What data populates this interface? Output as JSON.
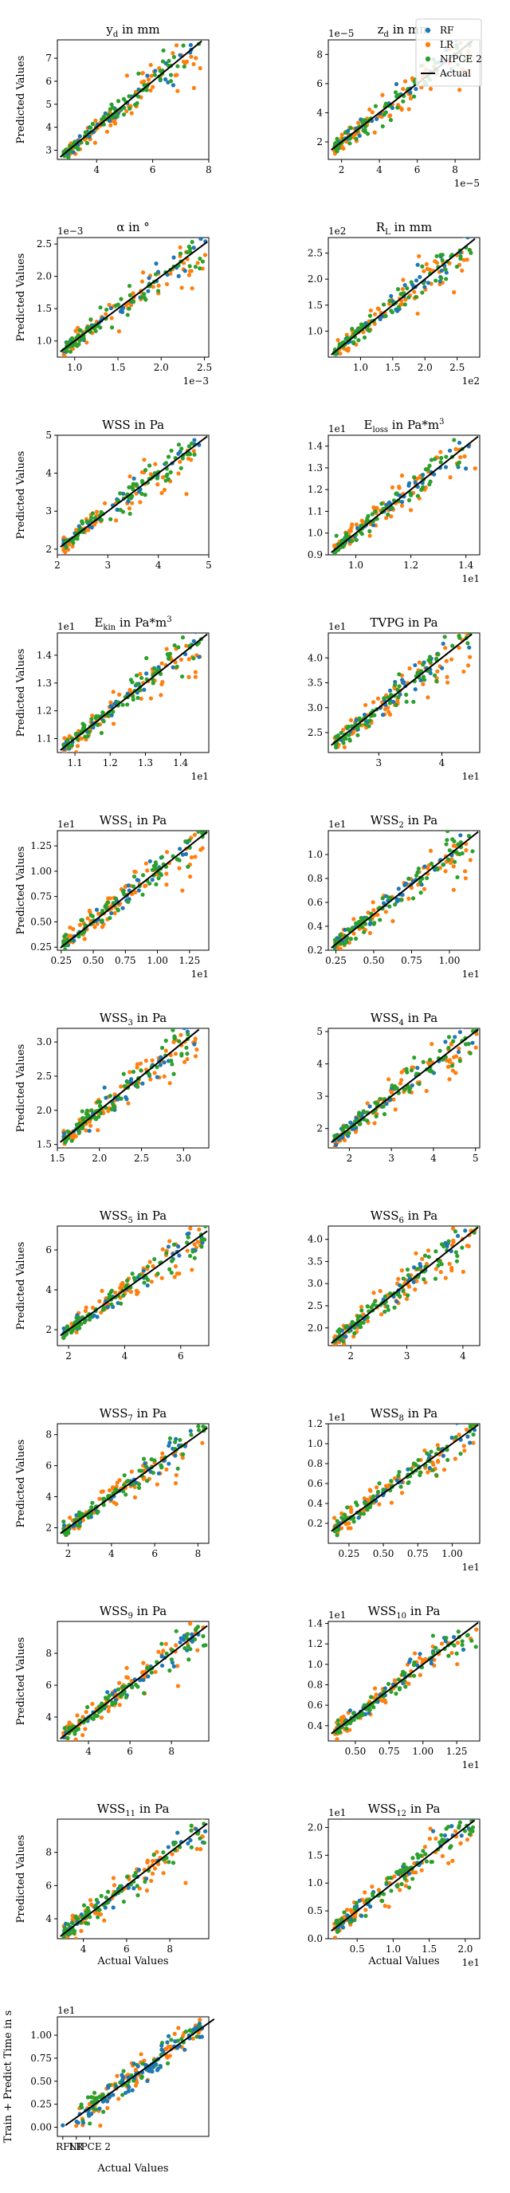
{
  "figure": {
    "ylabel": "Predicted Values",
    "xlabel": "Actual Values",
    "legend": {
      "placement": "upper-right of second panel",
      "entries": [
        "RF",
        "LR",
        "NIPCE 2",
        "Actual"
      ]
    },
    "colors": {
      "RF": "#1f77b4",
      "LR": "#ff7f0e",
      "NIPCE 2": "#2ca02c",
      "Actual": "#000000"
    }
  },
  "chart_data": [
    {
      "type": "scatter",
      "title": "y_d in mm",
      "xlim": [
        2.6,
        8.0
      ],
      "ylim": [
        2.6,
        7.8
      ],
      "xticks": [
        "4",
        "6",
        "8"
      ],
      "yticks": [
        "3",
        "4",
        "5",
        "6",
        "7"
      ]
    },
    {
      "type": "scatter",
      "title": "z_d in mm",
      "x_offset": "1e−5",
      "y_offset": "1e−5",
      "xlim": [
        1.3,
        9.3
      ],
      "ylim": [
        0.8,
        9.0
      ],
      "xticks": [
        "2",
        "4",
        "6",
        "8"
      ],
      "yticks": [
        "2",
        "4",
        "6",
        "8"
      ]
    },
    {
      "type": "scatter",
      "title": "α in °",
      "x_offset": "1e−3",
      "y_offset": "1e−3",
      "xlim": [
        0.8,
        2.55
      ],
      "ylim": [
        0.75,
        2.6
      ],
      "xticks": [
        "1.0",
        "1.5",
        "2.0",
        "2.5"
      ],
      "yticks": [
        "1.0",
        "1.5",
        "2.0",
        "2.5"
      ]
    },
    {
      "type": "scatter",
      "title": "R_L in mm",
      "x_offset": "1e2",
      "y_offset": "1e2",
      "xlim": [
        0.5,
        2.85
      ],
      "ylim": [
        0.5,
        2.8
      ],
      "xticks": [
        "1.0",
        "1.5",
        "2.0",
        "2.5"
      ],
      "yticks": [
        "1.0",
        "1.5",
        "2.0",
        "2.5"
      ]
    },
    {
      "type": "scatter",
      "title": "WSS in Pa",
      "xlim": [
        2.0,
        5.0
      ],
      "ylim": [
        1.85,
        5.0
      ],
      "xticks": [
        "2",
        "3",
        "4",
        "5"
      ],
      "yticks": [
        "2",
        "3",
        "4",
        "5"
      ]
    },
    {
      "type": "scatter",
      "title": "E_loss in Pa*m^3",
      "x_offset": "1e1",
      "y_offset": "1e1",
      "xlim": [
        0.9,
        1.45
      ],
      "ylim": [
        0.9,
        1.45
      ],
      "xticks": [
        "1.0",
        "1.2",
        "1.4"
      ],
      "yticks": [
        "0.9",
        "1.0",
        "1.1",
        "1.2",
        "1.3",
        "1.4"
      ]
    },
    {
      "type": "scatter",
      "title": "E_kin in Pa*m^3",
      "x_offset": "1e1",
      "y_offset": "1e1",
      "xlim": [
        1.05,
        1.48
      ],
      "ylim": [
        1.05,
        1.48
      ],
      "xticks": [
        "1.1",
        "1.2",
        "1.3",
        "1.4"
      ],
      "yticks": [
        "1.1",
        "1.2",
        "1.3",
        "1.4"
      ]
    },
    {
      "type": "scatter",
      "title": "TVPG in Pa",
      "x_offset": "1e1",
      "y_offset": "1e1",
      "xlim": [
        2.2,
        4.6
      ],
      "ylim": [
        2.1,
        4.5
      ],
      "xticks": [
        "3",
        "4"
      ],
      "yticks": [
        "2.5",
        "3.0",
        "3.5",
        "4.0"
      ]
    },
    {
      "type": "scatter",
      "title": "WSS_1 in Pa",
      "x_offset": "1e1",
      "y_offset": "1e1",
      "xlim": [
        0.22,
        1.4
      ],
      "ylim": [
        0.22,
        1.4
      ],
      "xticks": [
        "0.25",
        "0.50",
        "0.75",
        "1.00",
        "1.25"
      ],
      "yticks": [
        "0.25",
        "0.50",
        "0.75",
        "1.00",
        "1.25"
      ]
    },
    {
      "type": "scatter",
      "title": "WSS_2 in Pa",
      "x_offset": "1e1",
      "y_offset": "1e1",
      "xlim": [
        0.2,
        1.2
      ],
      "ylim": [
        0.2,
        1.2
      ],
      "xticks": [
        "0.25",
        "0.50",
        "0.75",
        "1.00"
      ],
      "yticks": [
        "0.2",
        "0.4",
        "0.6",
        "0.8",
        "1.0"
      ]
    },
    {
      "type": "scatter",
      "title": "WSS_3 in Pa",
      "xlim": [
        1.5,
        3.3
      ],
      "ylim": [
        1.45,
        3.2
      ],
      "xticks": [
        "1.5",
        "2.0",
        "2.5",
        "3.0"
      ],
      "yticks": [
        "1.5",
        "2.0",
        "2.5",
        "3.0"
      ]
    },
    {
      "type": "scatter",
      "title": "WSS_4 in Pa",
      "xlim": [
        1.5,
        5.1
      ],
      "ylim": [
        1.4,
        5.1
      ],
      "xticks": [
        "2",
        "3",
        "4",
        "5"
      ],
      "yticks": [
        "2",
        "3",
        "4",
        "5"
      ]
    },
    {
      "type": "scatter",
      "title": "WSS_5 in Pa",
      "xlim": [
        1.6,
        7.0
      ],
      "ylim": [
        1.2,
        7.2
      ],
      "xticks": [
        "2",
        "4",
        "6"
      ],
      "yticks": [
        "2",
        "4",
        "6"
      ]
    },
    {
      "type": "scatter",
      "title": "WSS_6 in Pa",
      "xlim": [
        1.6,
        4.3
      ],
      "ylim": [
        1.6,
        4.3
      ],
      "xticks": [
        "2",
        "3",
        "4"
      ],
      "yticks": [
        "2.0",
        "2.5",
        "3.0",
        "3.5",
        "4.0"
      ]
    },
    {
      "type": "scatter",
      "title": "WSS_7 in Pa",
      "xlim": [
        1.5,
        8.5
      ],
      "ylim": [
        1.0,
        8.7
      ],
      "xticks": [
        "2",
        "4",
        "6",
        "8"
      ],
      "yticks": [
        "2",
        "4",
        "6",
        "8"
      ]
    },
    {
      "type": "scatter",
      "title": "WSS_8 in Pa",
      "x_offset": "1e1",
      "y_offset": "1e1",
      "xlim": [
        0.1,
        1.2
      ],
      "ylim": [
        0.0,
        1.2
      ],
      "xticks": [
        "0.25",
        "0.50",
        "0.75",
        "1.00"
      ],
      "yticks": [
        "0.2",
        "0.4",
        "0.6",
        "0.8",
        "1.0",
        "1.2"
      ]
    },
    {
      "type": "scatter",
      "title": "WSS_9 in Pa",
      "xlim": [
        2.5,
        9.8
      ],
      "ylim": [
        2.5,
        10.0
      ],
      "xticks": [
        "4",
        "6",
        "8"
      ],
      "yticks": [
        "4",
        "6",
        "8"
      ]
    },
    {
      "type": "scatter",
      "title": "WSS_10 in Pa",
      "x_offset": "1e1",
      "y_offset": "1e1",
      "xlim": [
        0.3,
        1.42
      ],
      "ylim": [
        0.25,
        1.42
      ],
      "xticks": [
        "0.50",
        "0.75",
        "1.00",
        "1.25"
      ],
      "yticks": [
        "0.4",
        "0.6",
        "0.8",
        "1.0",
        "1.2",
        "1.4"
      ]
    },
    {
      "type": "scatter",
      "title": "WSS_11 in Pa",
      "xlim": [
        2.8,
        9.8
      ],
      "ylim": [
        2.8,
        10.0
      ],
      "xticks": [
        "4",
        "6",
        "8"
      ],
      "yticks": [
        "4",
        "6",
        "8"
      ]
    },
    {
      "type": "scatter",
      "title": "WSS_12 in Pa",
      "x_offset": "1e1",
      "y_offset": "1e1",
      "xlim": [
        0.1,
        2.2
      ],
      "ylim": [
        0.0,
        2.15
      ],
      "xticks": [
        "0.5",
        "1.0",
        "1.5",
        "2.0"
      ],
      "yticks": [
        "0.0",
        "0.5",
        "1.0",
        "1.5",
        "2.0"
      ]
    },
    {
      "type": "scatter",
      "title": "",
      "ylabel": "Train + Predict Time in s",
      "y_offset": "1e1",
      "xlim": [
        -0.4,
        10.8
      ],
      "ylim": [
        -0.1,
        1.2
      ],
      "xticks": [
        "RF",
        "LR",
        "NIPCE 2"
      ],
      "yticks": [
        "0.00",
        "0.25",
        "0.50",
        "0.75",
        "1.00"
      ]
    }
  ]
}
